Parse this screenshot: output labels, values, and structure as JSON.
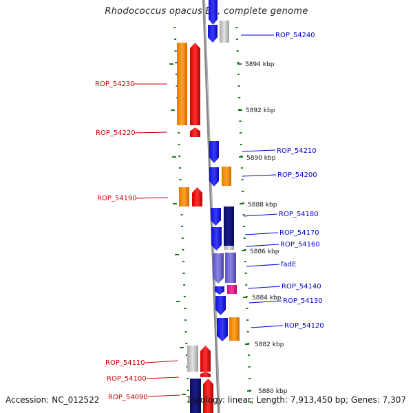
{
  "title": "Rhodococcus opacus B4, complete genome",
  "footer": {
    "accession": "Accession: NC_012522",
    "summary": "Topology: linear; Length: 7,913,450 bp; Genes: 7,307"
  },
  "colors": {
    "forward_label": "#0000cc",
    "reverse_label": "#cc0000",
    "tick": "#1a7a1a",
    "backbone": "#888888"
  },
  "scale_labels": [
    "5894 kbp",
    "5892 kbp",
    "5890 kbp",
    "5888 kbp",
    "5886 kbp",
    "5884 kbp",
    "5882 kbp",
    "5880 kbp"
  ],
  "gene_labels": {
    "forward": [
      "ROP_54240",
      "ROP_54210",
      "ROP_54200",
      "ROP_54180",
      "ROP_54170",
      "ROP_54160",
      "fadE",
      "ROP_54140",
      "ROP_54130",
      "ROP_54120"
    ],
    "reverse": [
      "ROP_54230",
      "ROP_54220",
      "ROP_54190",
      "ROP_54110",
      "ROP_54100",
      "ROP_54090"
    ]
  }
}
